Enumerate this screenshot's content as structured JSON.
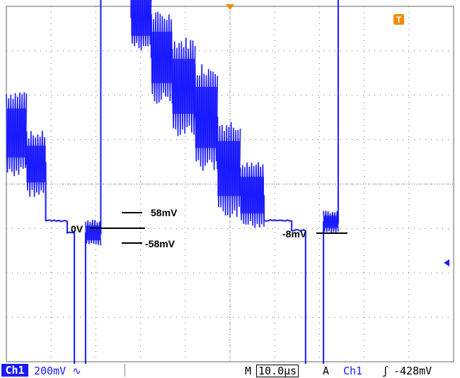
{
  "annotations": {
    "zero": "0V",
    "plus58": "58mV",
    "minus58": "-58mV",
    "minus8": "-8mV"
  },
  "status_bar": {
    "channel": "Ch1",
    "volts_div": "200mV",
    "coupling_icon": "ac-coupling-icon",
    "timebase_prefix": "M",
    "timebase": "10.0µs",
    "trigger_prefix": "A",
    "trigger_source": "Ch1",
    "trigger_slope_icon": "rising-edge-icon",
    "trigger_level": "-428mV"
  },
  "markers": {
    "trigger_badge": "T"
  },
  "colors": {
    "trace": "#1a1aff",
    "trigger_marker": "#f08c00",
    "grid": "#666666"
  },
  "chart_data": {
    "type": "line",
    "title": "",
    "xlabel": "",
    "ylabel": "",
    "x_units": "µs",
    "y_units": "V",
    "grid": true,
    "x_divisions": 10,
    "y_divisions": 8,
    "volts_per_div": 0.2,
    "time_per_div_us": 10.0,
    "series": [
      {
        "name": "Ch1",
        "segments": [
          {
            "x_start": 0.0,
            "x_end": 4.5,
            "y_level": 0.23,
            "ripple_pp": 0.4
          },
          {
            "x_start": 4.5,
            "x_end": 8.8,
            "y_level": 0.09,
            "ripple_pp": 0.3
          },
          {
            "x_start": 8.8,
            "x_end": 13.6,
            "y_level": -0.165,
            "ripple_pp": 0.02
          },
          {
            "x_start": 13.6,
            "x_end": 15.2,
            "y_level": -0.22,
            "ripple_pp": 0.02
          },
          {
            "x_start": 15.2,
            "x_end": 17.7,
            "y_level": -0.82,
            "ripple_pp": 0.02
          },
          {
            "x_start": 17.7,
            "x_end": 21.1,
            "y_level": -0.22,
            "ripple_pp": 0.12
          },
          {
            "x_start": 21.1,
            "x_end": 27.9,
            "y_level": 0.95,
            "ripple_pp": 0.02
          },
          {
            "x_start": 27.9,
            "x_end": 32.4,
            "y_level": 0.75,
            "ripple_pp": 0.3
          },
          {
            "x_start": 32.4,
            "x_end": 37.1,
            "y_level": 0.57,
            "ripple_pp": 0.42
          },
          {
            "x_start": 37.1,
            "x_end": 42.2,
            "y_level": 0.44,
            "ripple_pp": 0.45
          },
          {
            "x_start": 42.2,
            "x_end": 47.2,
            "y_level": 0.3,
            "ripple_pp": 0.5
          },
          {
            "x_start": 47.2,
            "x_end": 52.3,
            "y_level": 0.07,
            "ripple_pp": 0.45
          },
          {
            "x_start": 52.3,
            "x_end": 57.6,
            "y_level": -0.05,
            "ripple_pp": 0.3
          },
          {
            "x_start": 57.6,
            "x_end": 63.8,
            "y_level": -0.165,
            "ripple_pp": 0.02
          },
          {
            "x_start": 63.8,
            "x_end": 66.9,
            "y_level": -0.21,
            "ripple_pp": 0.02
          },
          {
            "x_start": 66.9,
            "x_end": 70.9,
            "y_level": -0.82,
            "ripple_pp": 0.02
          },
          {
            "x_start": 70.9,
            "x_end": 74.2,
            "y_level": -0.17,
            "ripple_pp": 0.1
          },
          {
            "x_start": 74.2,
            "x_end": 80.0,
            "y_level": 0.96,
            "ripple_pp": 0.02
          }
        ]
      }
    ]
  }
}
